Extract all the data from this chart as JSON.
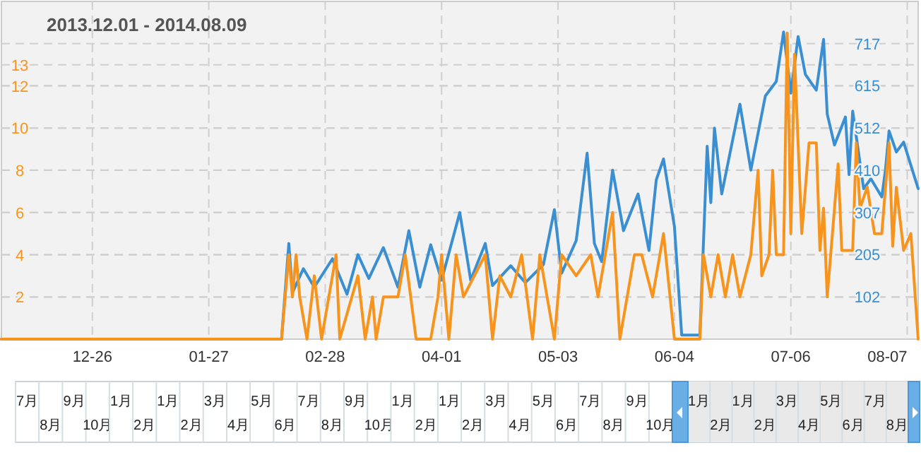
{
  "chart_data": {
    "type": "line",
    "title": "2013.12.01 - 2014.08.09",
    "xlim": [
      "2013-12-01",
      "2014-08-10"
    ],
    "xticks": [
      {
        "value": "2013-12-26",
        "label": "12-26"
      },
      {
        "value": "2014-01-27",
        "label": "01-27"
      },
      {
        "value": "2014-02-28",
        "label": "02-28"
      },
      {
        "value": "2014-04-01",
        "label": "04-01"
      },
      {
        "value": "2014-05-03",
        "label": "05-03"
      },
      {
        "value": "2014-06-04",
        "label": "06-04"
      },
      {
        "value": "2014-07-06",
        "label": "07-06"
      },
      {
        "value": "2014-08-07",
        "label": "08-07"
      }
    ],
    "ylim": [
      0,
      16
    ],
    "yticks": [
      2,
      4,
      6,
      8,
      10,
      12,
      13
    ],
    "y2lim": [
      0,
      819.2
    ],
    "y2ticks": [
      102,
      205,
      307,
      410,
      512,
      615,
      717
    ],
    "grid": true,
    "line_style": "solid",
    "series": [
      {
        "color": "#3a8fd3",
        "axis": "y2",
        "x": [
          "2013-12-01",
          "2014-02-16",
          "2014-02-18",
          "2014-02-19",
          "2014-02-22",
          "2014-02-25",
          "2014-03-02",
          "2014-03-06",
          "2014-03-09",
          "2014-03-12",
          "2014-03-16",
          "2014-03-20",
          "2014-03-23",
          "2014-03-26",
          "2014-03-29",
          "2014-04-01",
          "2014-04-06",
          "2014-04-09",
          "2014-04-13",
          "2014-04-15",
          "2014-04-20",
          "2014-04-24",
          "2014-04-29",
          "2014-05-02",
          "2014-05-04",
          "2014-05-08",
          "2014-05-11",
          "2014-05-13",
          "2014-05-15",
          "2014-05-18",
          "2014-05-21",
          "2014-05-25",
          "2014-05-28",
          "2014-05-30",
          "2014-06-01",
          "2014-06-04",
          "2014-06-06",
          "2014-06-11",
          "2014-06-13",
          "2014-06-14",
          "2014-06-15",
          "2014-06-17",
          "2014-06-22",
          "2014-06-25",
          "2014-06-29",
          "2014-07-02",
          "2014-07-04",
          "2014-07-06",
          "2014-07-08",
          "2014-07-10",
          "2014-07-13",
          "2014-07-15",
          "2014-07-16",
          "2014-07-18",
          "2014-07-21",
          "2014-07-22",
          "2014-07-23",
          "2014-07-26",
          "2014-07-28",
          "2014-07-31",
          "2014-08-01",
          "2014-08-02",
          "2014-08-04",
          "2014-08-06",
          "2014-08-10"
        ],
        "values": [
          0,
          0,
          232,
          113,
          171,
          126,
          195,
          109,
          205,
          147,
          222,
          126,
          263,
          126,
          229,
          143,
          307,
          143,
          232,
          130,
          178,
          137,
          181,
          314,
          160,
          239,
          451,
          232,
          188,
          410,
          263,
          352,
          215,
          386,
          437,
          273,
          10,
          10,
          468,
          331,
          512,
          352,
          570,
          410,
          590,
          625,
          745,
          597,
          734,
          642,
          604,
          727,
          546,
          471,
          539,
          399,
          553,
          365,
          389,
          345,
          410,
          505,
          454,
          478,
          365
        ]
      },
      {
        "color": "#f7941d",
        "axis": "y",
        "x": [
          "2013-12-01",
          "2014-02-16",
          "2014-02-18",
          "2014-02-19",
          "2014-02-20",
          "2014-02-21",
          "2014-02-23",
          "2014-02-25",
          "2014-02-27",
          "2014-03-03",
          "2014-03-04",
          "2014-03-09",
          "2014-03-11",
          "2014-03-13",
          "2014-03-14",
          "2014-03-16",
          "2014-03-20",
          "2014-03-22",
          "2014-03-25",
          "2014-03-29",
          "2014-03-31",
          "2014-04-01",
          "2014-04-03",
          "2014-04-05",
          "2014-04-07",
          "2014-04-10",
          "2014-04-13",
          "2014-04-15",
          "2014-04-17",
          "2014-04-20",
          "2014-04-23",
          "2014-04-26",
          "2014-04-28",
          "2014-04-30",
          "2014-05-02",
          "2014-05-04",
          "2014-05-08",
          "2014-05-12",
          "2014-05-14",
          "2014-05-18",
          "2014-05-20",
          "2014-05-24",
          "2014-05-26",
          "2014-05-29",
          "2014-06-01",
          "2014-06-04",
          "2014-06-11",
          "2014-06-12",
          "2014-06-14",
          "2014-06-16",
          "2014-06-18",
          "2014-06-20",
          "2014-06-22",
          "2014-06-25",
          "2014-06-27",
          "2014-06-28",
          "2014-06-30",
          "2014-07-01",
          "2014-07-02",
          "2014-07-04",
          "2014-07-05",
          "2014-07-06",
          "2014-07-07",
          "2014-07-09",
          "2014-07-11",
          "2014-07-13",
          "2014-07-14",
          "2014-07-15",
          "2014-07-16",
          "2014-07-18",
          "2014-07-19",
          "2014-07-20",
          "2014-07-23",
          "2014-07-24",
          "2014-07-25",
          "2014-07-27",
          "2014-07-29",
          "2014-07-31",
          "2014-08-02",
          "2014-08-03",
          "2014-08-04",
          "2014-08-06",
          "2014-08-08",
          "2014-08-10"
        ],
        "values": [
          0,
          0,
          4,
          2,
          4,
          2,
          0,
          3,
          0,
          4,
          0,
          3,
          0,
          2,
          0,
          2,
          2,
          4,
          0,
          0,
          2,
          4,
          0,
          4,
          2,
          3,
          4,
          0,
          3,
          2,
          4,
          0,
          4,
          2,
          0,
          4,
          3,
          4,
          2,
          6,
          0,
          4,
          4,
          2,
          5,
          0,
          0,
          4,
          2,
          4,
          2,
          4,
          2,
          4,
          8,
          3,
          4,
          8,
          4,
          4,
          14.5,
          5,
          13.5,
          5,
          9.3,
          9.3,
          4.2,
          6.2,
          2,
          6.2,
          8.3,
          4.2,
          4.2,
          9.3,
          6.2,
          7.2,
          5,
          5,
          9.3,
          4.4,
          7.2,
          4.2,
          5,
          0
        ]
      }
    ],
    "annotations": [
      "7月",
      "8月",
      "9月",
      "10月",
      "1月",
      "2月",
      "1月",
      "2月",
      "3月",
      "4月",
      "5月",
      "6月",
      "7月",
      "8月",
      "9月",
      "10月",
      "1月",
      "2月",
      "1月",
      "2月",
      "3月",
      "4月",
      "5月",
      "6月",
      "7月",
      "8月",
      "9月",
      "10月",
      "1月",
      "2月",
      "1月",
      "2月",
      "3月",
      "4月",
      "5月",
      "6月",
      "7月",
      "8月"
    ]
  }
}
